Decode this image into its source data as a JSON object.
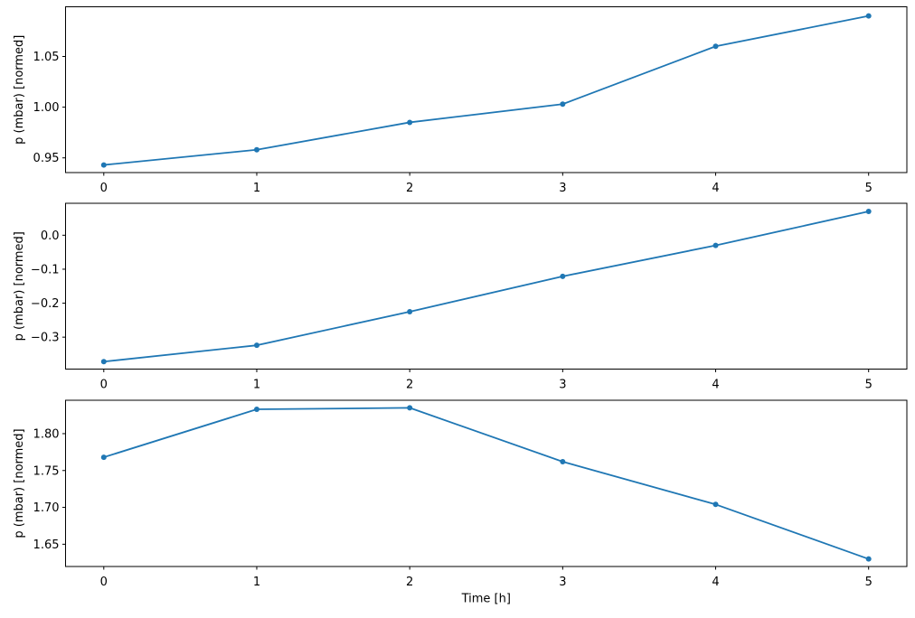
{
  "figure": {
    "background": "#ffffff",
    "spine_color": "#000000",
    "text_color": "#000000",
    "accent_color": "#1f77b4"
  },
  "chart_data": [
    {
      "type": "line",
      "title": "",
      "x": [
        0,
        1,
        2,
        3,
        4,
        5
      ],
      "values": [
        0.943,
        0.958,
        0.985,
        1.003,
        1.06,
        1.09
      ],
      "xlabel": "",
      "ylabel": "p (mbar) [normed]",
      "xticks": [
        0,
        1,
        2,
        3,
        4,
        5
      ],
      "xtick_labels": [
        "0",
        "1",
        "2",
        "3",
        "4",
        "5"
      ],
      "yticks": [
        0.95,
        1.0,
        1.05
      ],
      "ytick_labels": [
        "0.95",
        "1.00",
        "1.05"
      ],
      "xlim": [
        -0.25,
        5.25
      ],
      "ylim": [
        0.9355,
        1.099
      ],
      "grid": false,
      "legend": null,
      "line_color": "#1f77b4",
      "marker": "point"
    },
    {
      "type": "line",
      "title": "",
      "x": [
        0,
        1,
        2,
        3,
        4,
        5
      ],
      "values": [
        -0.372,
        -0.324,
        -0.225,
        -0.121,
        -0.03,
        0.07
      ],
      "xlabel": "",
      "ylabel": "p (mbar) [normed]",
      "xticks": [
        0,
        1,
        2,
        3,
        4,
        5
      ],
      "xtick_labels": [
        "0",
        "1",
        "2",
        "3",
        "4",
        "5"
      ],
      "yticks": [
        -0.3,
        -0.2,
        -0.1,
        0.0
      ],
      "ytick_labels": [
        "−0.3",
        "−0.2",
        "−0.1",
        "0.0"
      ],
      "xlim": [
        -0.25,
        5.25
      ],
      "ylim": [
        -0.394,
        0.094
      ],
      "grid": false,
      "legend": null,
      "line_color": "#1f77b4",
      "marker": "point"
    },
    {
      "type": "line",
      "title": "",
      "x": [
        0,
        1,
        2,
        3,
        4,
        5
      ],
      "values": [
        1.768,
        1.833,
        1.835,
        1.762,
        1.704,
        1.63
      ],
      "xlabel": "Time [h]",
      "ylabel": "p (mbar) [normed]",
      "xticks": [
        0,
        1,
        2,
        3,
        4,
        5
      ],
      "xtick_labels": [
        "0",
        "1",
        "2",
        "3",
        "4",
        "5"
      ],
      "yticks": [
        1.65,
        1.7,
        1.75,
        1.8
      ],
      "ytick_labels": [
        "1.65",
        "1.70",
        "1.75",
        "1.80"
      ],
      "xlim": [
        -0.25,
        5.25
      ],
      "ylim": [
        1.6198,
        1.8453
      ],
      "grid": false,
      "legend": null,
      "line_color": "#1f77b4",
      "marker": "point"
    }
  ]
}
